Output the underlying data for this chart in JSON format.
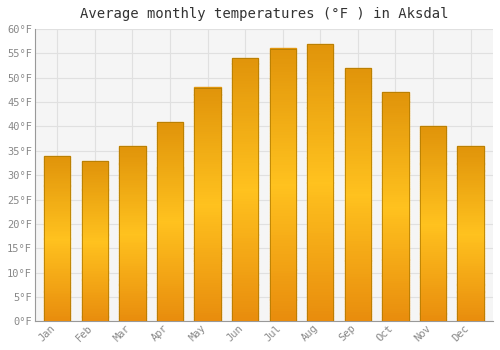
{
  "title": "Average monthly temperatures (°F ) in Aksdal",
  "months": [
    "Jan",
    "Feb",
    "Mar",
    "Apr",
    "May",
    "Jun",
    "Jul",
    "Aug",
    "Sep",
    "Oct",
    "Nov",
    "Dec"
  ],
  "values": [
    34,
    33,
    36,
    41,
    48,
    54,
    56,
    57,
    52,
    47,
    40,
    36
  ],
  "bar_color_top": "#E8960A",
  "bar_color_mid": "#FFC125",
  "bar_color_bottom": "#E8960A",
  "bar_edge_color": "#B8860B",
  "ylim": [
    0,
    60
  ],
  "yticks": [
    0,
    5,
    10,
    15,
    20,
    25,
    30,
    35,
    40,
    45,
    50,
    55,
    60
  ],
  "background_color": "#ffffff",
  "plot_bg_color": "#f5f5f5",
  "grid_color": "#e0e0e0",
  "title_fontsize": 10,
  "tick_fontsize": 7.5,
  "tick_color": "#888888",
  "title_color": "#333333",
  "bar_width": 0.7
}
